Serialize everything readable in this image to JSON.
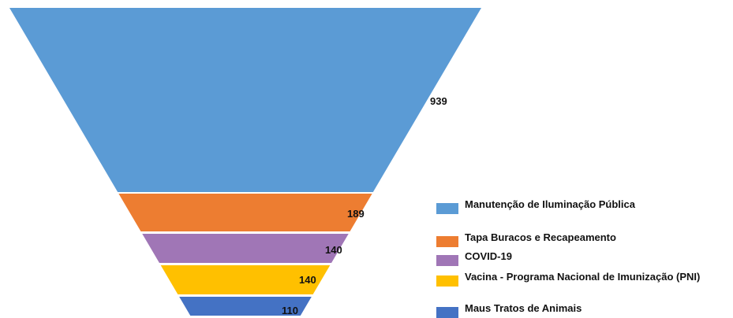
{
  "chart_data": {
    "type": "funnel",
    "categories": [
      "Manutenção de Iluminação Pública",
      "Tapa Buracos e Recapeamento",
      "COVID-19",
      "Vacina - Programa Nacional de Imunização (PNI)",
      "Maus Tratos de Animais"
    ],
    "values": [
      939,
      189,
      140,
      140,
      110
    ],
    "value_labels": [
      "939",
      "189",
      "140",
      "140",
      "110"
    ],
    "colors": [
      "#5b9bd5",
      "#ed7d31",
      "#a076b6",
      "#ffc000",
      "#4472c4"
    ],
    "legend": {
      "position": "right-bottom",
      "items": [
        {
          "label": "Manutenção de Iluminação Pública",
          "color": "#5b9bd5"
        },
        {
          "label": "Tapa Buracos e Recapeamento",
          "color": "#ed7d31"
        },
        {
          "label": "COVID-19",
          "color": "#a076b6"
        },
        {
          "label": "Vacina - Programa Nacional de Imunização (PNI)",
          "color": "#ffc000"
        },
        {
          "label": "Maus Tratos de Animais",
          "color": "#4472c4"
        }
      ]
    }
  }
}
